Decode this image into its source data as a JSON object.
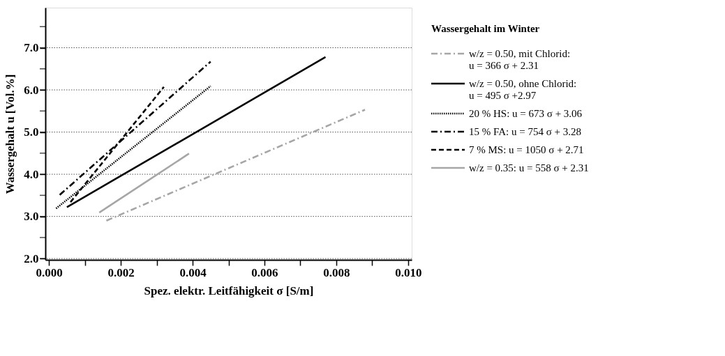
{
  "chart_data": {
    "type": "line",
    "xlabel": "Spez. elektr. Leitfähigkeit σ [S/m]",
    "ylabel": "Wassergehalt u [Vol.%]",
    "legend_title": "Wassergehalt im Winter",
    "legend": "right",
    "grid": "y",
    "xlim": [
      -0.0001,
      0.0101
    ],
    "ylim": [
      1.97,
      7.95
    ],
    "xticks": [
      {
        "value": 0,
        "label": "0.000"
      },
      {
        "value": 0.001,
        "label": null
      },
      {
        "value": 0.002,
        "label": "0.002"
      },
      {
        "value": 0.003,
        "label": null
      },
      {
        "value": 0.004,
        "label": "0.004"
      },
      {
        "value": 0.005,
        "label": null
      },
      {
        "value": 0.006,
        "label": "0.006"
      },
      {
        "value": 0.007,
        "label": null
      },
      {
        "value": 0.008,
        "label": "0.008"
      },
      {
        "value": 0.009,
        "label": null
      },
      {
        "value": 0.01,
        "label": "0.010"
      }
    ],
    "yticks": [
      {
        "value": 2,
        "label": "2.0"
      },
      {
        "value": 2.5,
        "label": null
      },
      {
        "value": 3,
        "label": "3.0"
      },
      {
        "value": 3.5,
        "label": null
      },
      {
        "value": 4,
        "label": "4.0"
      },
      {
        "value": 4.5,
        "label": null
      },
      {
        "value": 5,
        "label": "5.0"
      },
      {
        "value": 5.5,
        "label": null
      },
      {
        "value": 6,
        "label": "6.0"
      },
      {
        "value": 6.5,
        "label": null
      },
      {
        "value": 7,
        "label": "7.0"
      },
      {
        "value": 7.5,
        "label": null
      }
    ],
    "series": [
      {
        "name": "w/z = 0.50, mit  Chlorid:\n                    u =   366 σ + 2.31",
        "color": "#a6a6a6",
        "line_style": "dashdot",
        "x": [
          0.0016,
          0.0088
        ],
        "values": [
          2.9,
          5.53
        ]
      },
      {
        "name": "w/z = 0.50, ohne Chlorid:\n                    u =   495 σ +2.97",
        "color": "#000000",
        "line_style": "solid",
        "x": [
          0.0005,
          0.0077
        ],
        "values": [
          3.22,
          6.78
        ]
      },
      {
        "name": "20 % HS:     u =   673 σ + 3.06",
        "color": "#000000",
        "line_style": "dotted",
        "x": [
          0.0002,
          0.0045
        ],
        "values": [
          3.19,
          6.09
        ]
      },
      {
        "name": "15 % FA:     u =   754 σ + 3.28",
        "color": "#000000",
        "line_style": "dashdot",
        "x": [
          0.0003,
          0.0045
        ],
        "values": [
          3.51,
          6.67
        ]
      },
      {
        "name": "  7 % MS:    u = 1050 σ + 2.71",
        "color": "#000000",
        "line_style": "dashed",
        "x": [
          0.0006,
          0.0032
        ],
        "values": [
          3.34,
          6.07
        ]
      },
      {
        "name": "w/z = 0.35:  u =   558 σ + 2.31",
        "color": "#a6a6a6",
        "line_style": "solid",
        "x": [
          0.0014,
          0.0039
        ],
        "values": [
          3.09,
          4.49
        ]
      }
    ]
  }
}
